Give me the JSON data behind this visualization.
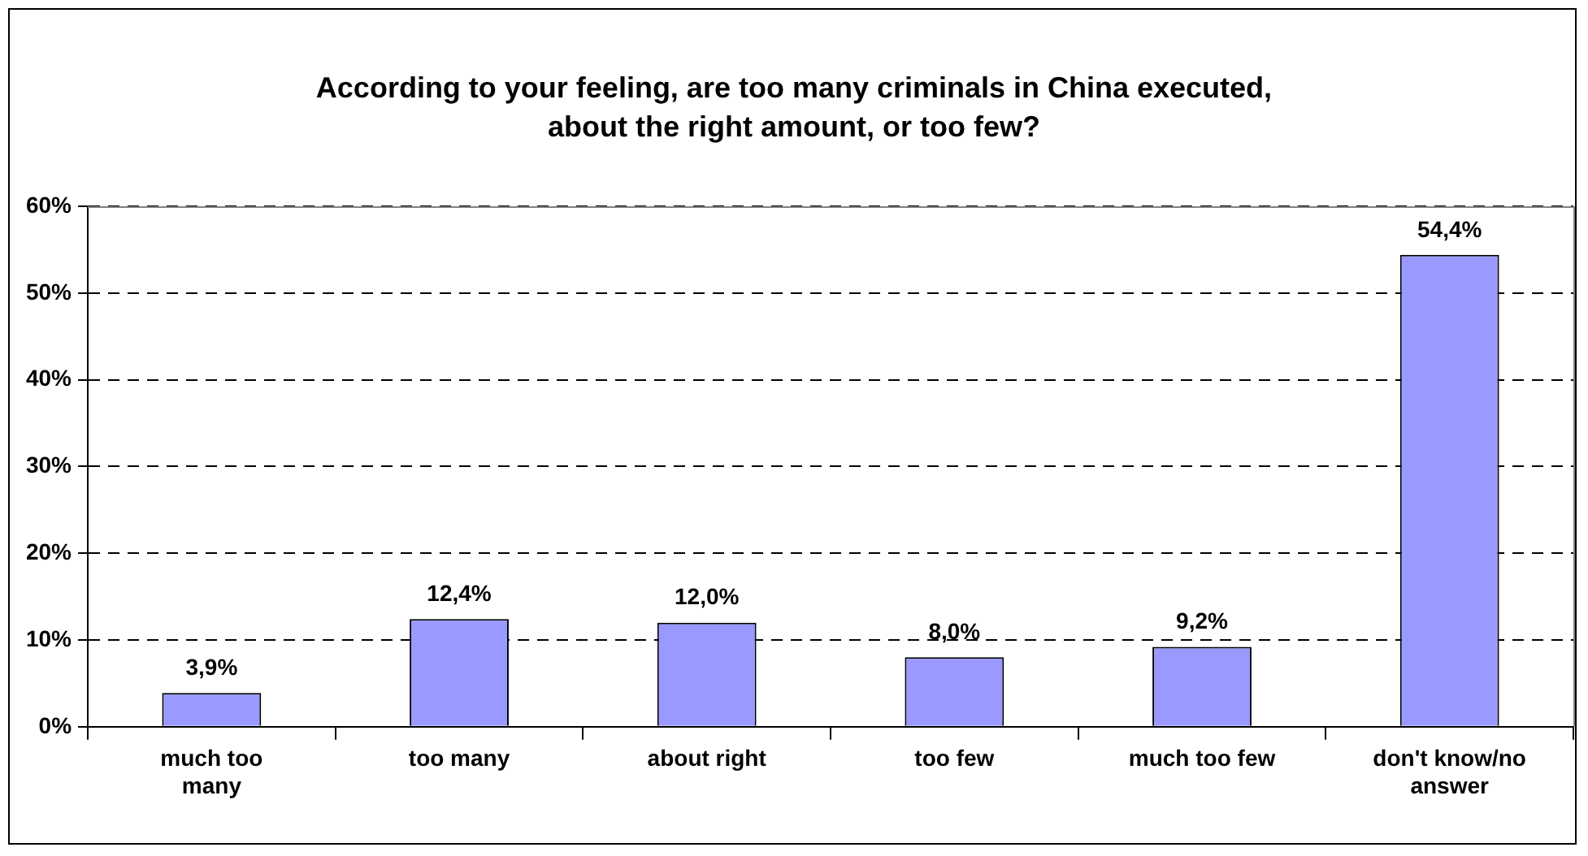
{
  "chart_data": {
    "type": "bar",
    "title": "According to your feeling, are too many criminals in China executed, about the right amount, or too few?",
    "categories": [
      "much too many",
      "too many",
      "about right",
      "too few",
      "much too few",
      "don't know/no answer"
    ],
    "values": [
      3.9,
      12.4,
      12.0,
      8.0,
      9.2,
      54.4
    ],
    "value_labels": [
      "3,9%",
      "12,4%",
      "12,0%",
      "8,0%",
      "9,2%",
      "54,4%"
    ],
    "color": "#9999ff",
    "ylim": [
      0,
      60
    ],
    "yticks": [
      {
        "value": 0,
        "label": "0%"
      },
      {
        "value": 10,
        "label": "10%"
      },
      {
        "value": 20,
        "label": "20%"
      },
      {
        "value": 30,
        "label": "30%"
      },
      {
        "value": 40,
        "label": "40%"
      },
      {
        "value": 50,
        "label": "50%"
      },
      {
        "value": 60,
        "label": "60%"
      }
    ],
    "grid": "y",
    "legend": false
  }
}
